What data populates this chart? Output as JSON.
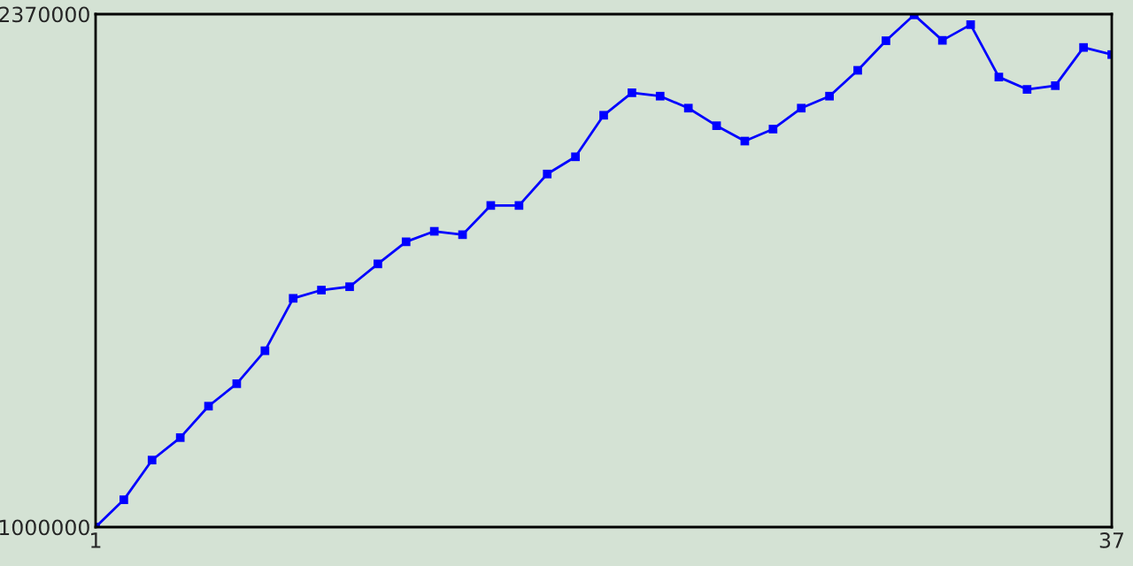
{
  "chart_data": {
    "type": "line",
    "x": [
      1,
      2,
      3,
      4,
      5,
      6,
      7,
      8,
      9,
      10,
      11,
      12,
      13,
      14,
      15,
      16,
      17,
      18,
      19,
      20,
      21,
      22,
      23,
      24,
      25,
      26,
      27,
      28,
      29,
      30,
      31,
      32,
      33,
      34,
      35,
      36,
      37
    ],
    "series": [
      {
        "color": "#0000ff",
        "values": [
          1000000,
          1073000,
          1179000,
          1239000,
          1323000,
          1383000,
          1471000,
          1611000,
          1633000,
          1642000,
          1703000,
          1762000,
          1790000,
          1781000,
          1859000,
          1859000,
          1943000,
          1989000,
          2100000,
          2160000,
          2151000,
          2119000,
          2072000,
          2031000,
          2063000,
          2119000,
          2151000,
          2220000,
          2299000,
          2368000,
          2300000,
          2342000,
          2202000,
          2169000,
          2179000,
          2281000,
          2262000
        ]
      }
    ],
    "xlim": [
      1,
      37
    ],
    "xticks": [
      1,
      37
    ],
    "ylim": [
      1000000,
      2370000
    ],
    "yticks": [
      1000000,
      2370000
    ],
    "marker": "square",
    "line_style": "solid"
  }
}
